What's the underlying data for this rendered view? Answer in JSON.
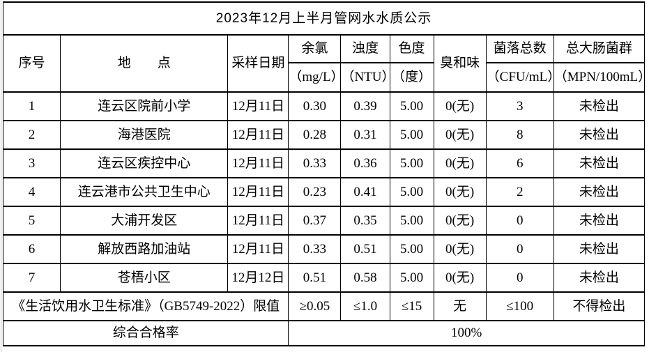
{
  "title": "2023年12月上半月管网水水质公示",
  "table": {
    "columns": [
      {
        "key": "index",
        "label": "序号"
      },
      {
        "key": "location",
        "label": "地　　点"
      },
      {
        "key": "date",
        "label": "采样日期"
      },
      {
        "key": "chlorine",
        "label": "余氯",
        "unit": "（mg/L）"
      },
      {
        "key": "turbidity",
        "label": "浊度",
        "unit": "（NTU）"
      },
      {
        "key": "chroma",
        "label": "色度",
        "unit": "（度）"
      },
      {
        "key": "odor",
        "label": "臭和味"
      },
      {
        "key": "colony",
        "label": "菌落总数",
        "unit": "（CFU/mL）"
      },
      {
        "key": "coliform",
        "label": "总大肠菌群",
        "unit": "（MPN/100mL）"
      }
    ],
    "rows": [
      [
        "1",
        "连云区院前小学",
        "12月11日",
        "0.30",
        "0.39",
        "5.00",
        "0(无)",
        "3",
        "未检出"
      ],
      [
        "2",
        "海港医院",
        "12月11日",
        "0.28",
        "0.31",
        "5.00",
        "0(无)",
        "8",
        "未检出"
      ],
      [
        "3",
        "连云区疾控中心",
        "12月11日",
        "0.33",
        "0.36",
        "5.00",
        "0(无)",
        "6",
        "未检出"
      ],
      [
        "4",
        "连云港市公共卫生中心",
        "12月11日",
        "0.23",
        "0.41",
        "5.00",
        "0(无)",
        "2",
        "未检出"
      ],
      [
        "5",
        "大浦开发区",
        "12月11日",
        "0.37",
        "0.35",
        "5.00",
        "0(无)",
        "0",
        "未检出"
      ],
      [
        "6",
        "解放西路加油站",
        "12月11日",
        "0.33",
        "0.51",
        "5.00",
        "0(无)",
        "0",
        "未检出"
      ],
      [
        "7",
        "苍梧小区",
        "12月12日",
        "0.51",
        "0.58",
        "5.00",
        "0(无)",
        "0",
        "未检出"
      ]
    ],
    "limit_row": {
      "label": "《生活饮用水卫生标准》（GB5749-2022）限值",
      "values": [
        "≥0.05",
        "≤1.0",
        "≤15",
        "无",
        "≤100",
        "不得检出"
      ]
    },
    "summary_row": {
      "label": "综合合格率",
      "value": "100%"
    }
  }
}
